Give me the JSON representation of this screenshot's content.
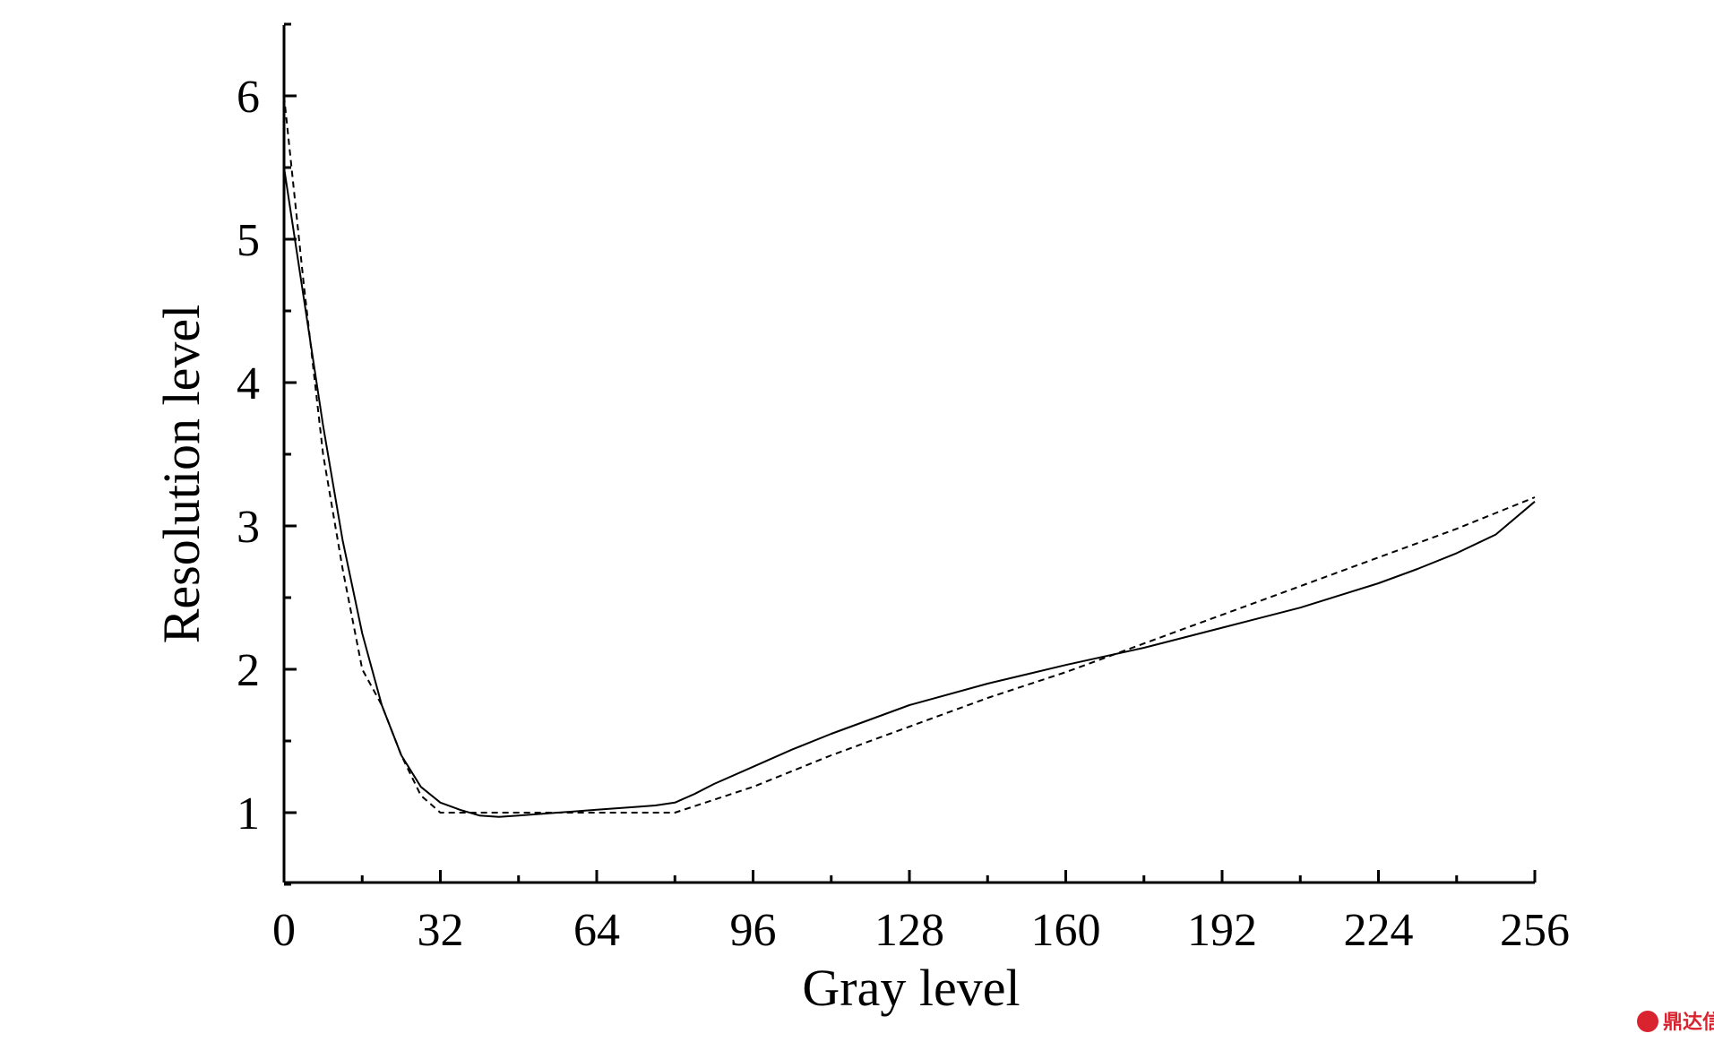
{
  "chart_data": {
    "type": "line",
    "title": "",
    "xlabel": "Gray level",
    "ylabel": "Resolution level",
    "xlim": [
      0,
      256
    ],
    "ylim": [
      0.5,
      6.5
    ],
    "x_ticks": [
      0,
      32,
      64,
      96,
      128,
      160,
      192,
      224,
      256
    ],
    "y_ticks": [
      1,
      2,
      3,
      4,
      5,
      6
    ],
    "grid": false,
    "legend": "none",
    "series": [
      {
        "style": "solid",
        "color": "#000000",
        "x": [
          0,
          4,
          8,
          12,
          16,
          20,
          24,
          28,
          32,
          36,
          40,
          44,
          48,
          56,
          64,
          72,
          76,
          80,
          84,
          88,
          96,
          104,
          112,
          128,
          144,
          160,
          176,
          192,
          208,
          224,
          232,
          240,
          248,
          256
        ],
        "y": [
          5.5,
          4.6,
          3.7,
          2.9,
          2.25,
          1.75,
          1.4,
          1.18,
          1.07,
          1.02,
          0.98,
          0.97,
          0.98,
          1.0,
          1.02,
          1.04,
          1.05,
          1.07,
          1.13,
          1.2,
          1.32,
          1.44,
          1.55,
          1.75,
          1.9,
          2.03,
          2.15,
          2.29,
          2.43,
          2.6,
          2.7,
          2.81,
          2.94,
          3.17
        ]
      },
      {
        "style": "dashed",
        "color": "#000000",
        "x": [
          0,
          4,
          8,
          12,
          16,
          20,
          24,
          28,
          32,
          48,
          64,
          80,
          96,
          112,
          128,
          144,
          160,
          176,
          192,
          208,
          224,
          240,
          256
        ],
        "y": [
          6.0,
          4.7,
          3.5,
          2.7,
          2.0,
          1.75,
          1.4,
          1.12,
          1.0,
          1.0,
          1.0,
          1.0,
          1.18,
          1.4,
          1.6,
          1.8,
          1.98,
          2.18,
          2.38,
          2.58,
          2.78,
          2.98,
          3.2
        ]
      }
    ]
  },
  "watermark": {
    "text": "鼎达信",
    "color": "#d9232e"
  }
}
